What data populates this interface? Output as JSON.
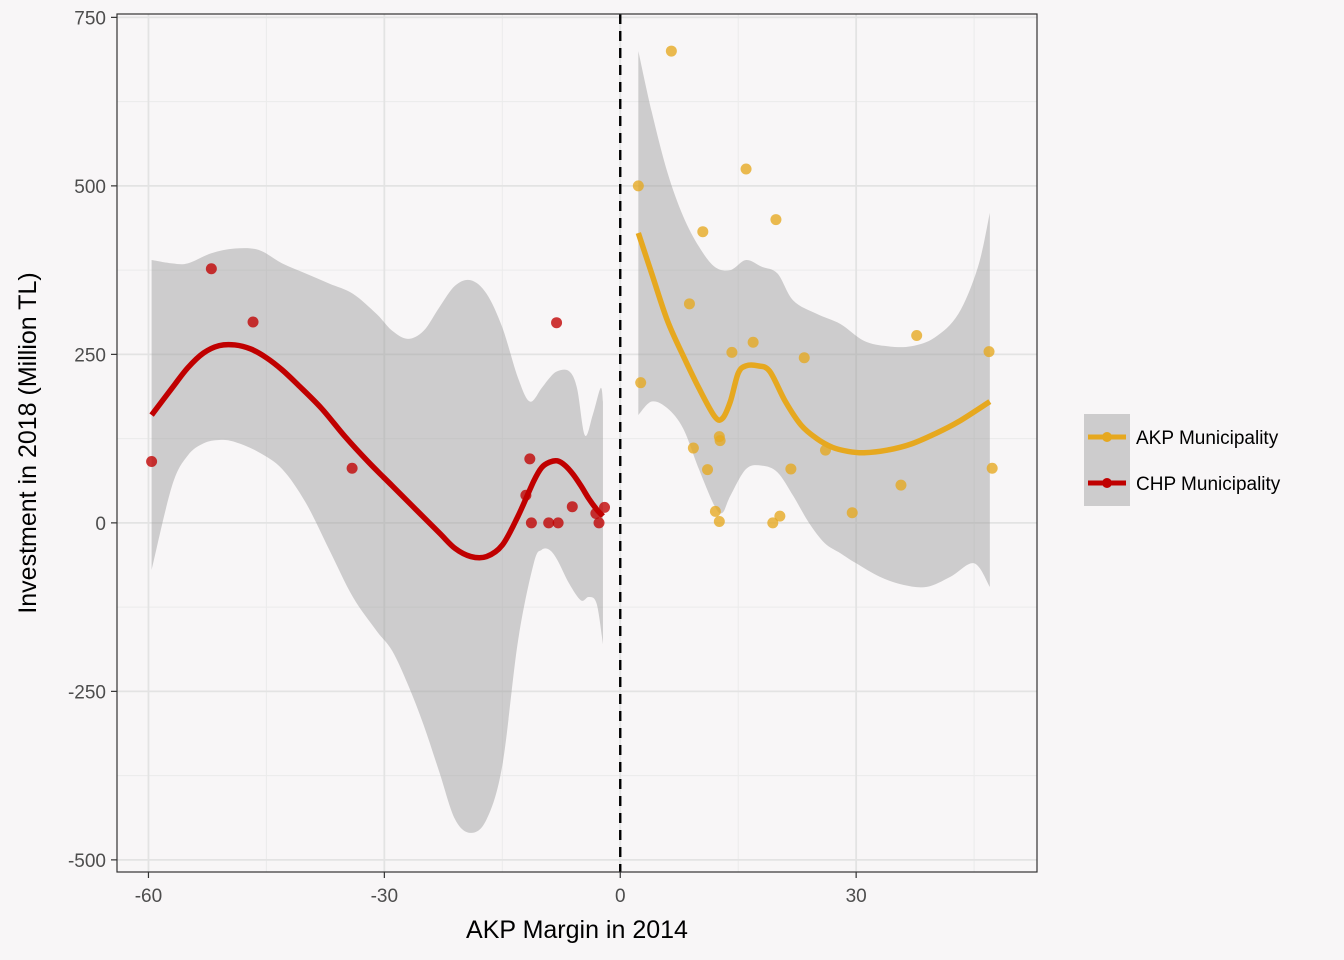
{
  "chart_data": {
    "type": "scatter",
    "xlabel": "AKP Margin in 2014",
    "ylabel": "Investment in 2018 (Million TL)",
    "xlim": [
      -64,
      53
    ],
    "ylim": [
      -518,
      755
    ],
    "x_ticks": [
      -60,
      -30,
      0,
      30
    ],
    "x_tick_labels": [
      "-60",
      "-30",
      "0",
      "30"
    ],
    "y_ticks": [
      -500,
      -250,
      0,
      250,
      500,
      750
    ],
    "y_tick_labels": [
      "-500",
      "-250",
      "0",
      "250",
      "500",
      "750"
    ],
    "grid": true,
    "cutoff_line": {
      "x": 0,
      "style": "dashed"
    },
    "legend_position": "right",
    "series": [
      {
        "name": "AKP Municipality",
        "color": "#e6a81f",
        "points": [
          [
            2.3,
            500
          ],
          [
            2.6,
            208
          ],
          [
            6.5,
            700
          ],
          [
            8.8,
            325
          ],
          [
            9.3,
            111
          ],
          [
            10.5,
            432
          ],
          [
            11.1,
            79
          ],
          [
            12.1,
            17
          ],
          [
            12.6,
            2
          ],
          [
            12.6,
            128
          ],
          [
            12.7,
            122
          ],
          [
            14.2,
            253
          ],
          [
            16.0,
            525
          ],
          [
            16.9,
            268
          ],
          [
            19.4,
            0
          ],
          [
            19.8,
            450
          ],
          [
            20.3,
            10
          ],
          [
            21.7,
            80
          ],
          [
            23.4,
            245
          ],
          [
            26.1,
            108
          ],
          [
            29.5,
            15
          ],
          [
            35.7,
            56
          ],
          [
            37.7,
            278
          ],
          [
            46.9,
            254
          ],
          [
            47.3,
            81
          ]
        ],
        "smooth": [
          [
            2.3,
            430
          ],
          [
            4,
            370
          ],
          [
            6,
            300
          ],
          [
            8,
            248
          ],
          [
            10,
            200
          ],
          [
            12,
            158
          ],
          [
            13,
            155
          ],
          [
            14,
            180
          ],
          [
            15,
            222
          ],
          [
            16,
            233
          ],
          [
            17.5,
            233
          ],
          [
            19,
            225
          ],
          [
            21,
            180
          ],
          [
            23,
            145
          ],
          [
            25,
            125
          ],
          [
            27,
            112
          ],
          [
            29,
            106
          ],
          [
            31,
            104
          ],
          [
            34,
            108
          ],
          [
            37,
            117
          ],
          [
            40,
            132
          ],
          [
            43,
            150
          ],
          [
            47,
            180
          ]
        ],
        "ci_upper": [
          [
            2.3,
            700
          ],
          [
            4,
            610
          ],
          [
            6,
            520
          ],
          [
            8,
            455
          ],
          [
            10,
            410
          ],
          [
            12,
            380
          ],
          [
            14,
            375
          ],
          [
            16,
            390
          ],
          [
            18,
            380
          ],
          [
            20,
            370
          ],
          [
            22,
            330
          ],
          [
            25,
            310
          ],
          [
            28,
            295
          ],
          [
            31,
            270
          ],
          [
            34,
            262
          ],
          [
            37,
            262
          ],
          [
            40,
            275
          ],
          [
            43,
            310
          ],
          [
            45.5,
            380
          ],
          [
            47,
            460
          ]
        ],
        "ci_lower": [
          [
            2.3,
            160
          ],
          [
            4,
            180
          ],
          [
            6,
            170
          ],
          [
            8,
            140
          ],
          [
            10,
            80
          ],
          [
            12,
            25
          ],
          [
            13,
            15
          ],
          [
            14,
            40
          ],
          [
            16,
            80
          ],
          [
            18,
            85
          ],
          [
            20,
            75
          ],
          [
            22,
            40
          ],
          [
            24,
            0
          ],
          [
            26,
            -30
          ],
          [
            28,
            -45
          ],
          [
            30,
            -60
          ],
          [
            33,
            -80
          ],
          [
            36,
            -92
          ],
          [
            39,
            -95
          ],
          [
            42,
            -80
          ],
          [
            45,
            -60
          ],
          [
            47,
            -95
          ]
        ]
      },
      {
        "name": "CHP Municipality",
        "color": "#c00000",
        "points": [
          [
            -59.6,
            91
          ],
          [
            -52.0,
            377
          ],
          [
            -46.7,
            298
          ],
          [
            -34.1,
            81
          ],
          [
            -12.0,
            41
          ],
          [
            -11.5,
            95
          ],
          [
            -11.3,
            0
          ],
          [
            -9.1,
            0
          ],
          [
            -8.1,
            297
          ],
          [
            -7.9,
            0
          ],
          [
            -6.1,
            24
          ],
          [
            -3.1,
            14
          ],
          [
            -2.7,
            0
          ],
          [
            -2.0,
            23
          ]
        ],
        "smooth": [
          [
            -59.6,
            160
          ],
          [
            -57,
            200
          ],
          [
            -55,
            230
          ],
          [
            -53,
            252
          ],
          [
            -51,
            263
          ],
          [
            -49,
            264
          ],
          [
            -47,
            258
          ],
          [
            -45,
            245
          ],
          [
            -43,
            227
          ],
          [
            -41,
            205
          ],
          [
            -38,
            170
          ],
          [
            -35,
            128
          ],
          [
            -32,
            90
          ],
          [
            -29,
            55
          ],
          [
            -26,
            20
          ],
          [
            -23,
            -15
          ],
          [
            -21,
            -38
          ],
          [
            -19,
            -50
          ],
          [
            -17,
            -50
          ],
          [
            -15,
            -33
          ],
          [
            -13,
            10
          ],
          [
            -11,
            62
          ],
          [
            -10,
            82
          ],
          [
            -9,
            90
          ],
          [
            -8,
            92
          ],
          [
            -7,
            85
          ],
          [
            -6,
            72
          ],
          [
            -5,
            55
          ],
          [
            -4,
            36
          ],
          [
            -3,
            20
          ],
          [
            -2.2,
            10
          ]
        ],
        "ci_upper": [
          [
            -59.6,
            390
          ],
          [
            -57,
            385
          ],
          [
            -55,
            385
          ],
          [
            -52,
            400
          ],
          [
            -49,
            407
          ],
          [
            -46,
            405
          ],
          [
            -43,
            385
          ],
          [
            -40,
            370
          ],
          [
            -37,
            355
          ],
          [
            -34,
            340
          ],
          [
            -31,
            310
          ],
          [
            -29,
            285
          ],
          [
            -27,
            273
          ],
          [
            -25,
            285
          ],
          [
            -23,
            320
          ],
          [
            -21,
            352
          ],
          [
            -19,
            360
          ],
          [
            -17,
            340
          ],
          [
            -15,
            290
          ],
          [
            -13,
            215
          ],
          [
            -11.5,
            180
          ],
          [
            -10,
            200
          ],
          [
            -9,
            215
          ],
          [
            -8,
            225
          ],
          [
            -6.5,
            225
          ],
          [
            -5.5,
            200
          ],
          [
            -4.5,
            130
          ],
          [
            -3.5,
            160
          ],
          [
            -2.5,
            200
          ],
          [
            -2.2,
            180
          ]
        ],
        "ci_lower": [
          [
            -59.6,
            -70
          ],
          [
            -57,
            55
          ],
          [
            -55,
            100
          ],
          [
            -53,
            118
          ],
          [
            -51,
            123
          ],
          [
            -49,
            120
          ],
          [
            -46,
            105
          ],
          [
            -43,
            80
          ],
          [
            -40,
            30
          ],
          [
            -37,
            -40
          ],
          [
            -34,
            -110
          ],
          [
            -31,
            -160
          ],
          [
            -29,
            -190
          ],
          [
            -27,
            -240
          ],
          [
            -25,
            -300
          ],
          [
            -23,
            -370
          ],
          [
            -21,
            -440
          ],
          [
            -19,
            -460
          ],
          [
            -17,
            -440
          ],
          [
            -15,
            -360
          ],
          [
            -13,
            -175
          ],
          [
            -11,
            -60
          ],
          [
            -10,
            -40
          ],
          [
            -9,
            -40
          ],
          [
            -8,
            -55
          ],
          [
            -6.5,
            -90
          ],
          [
            -5,
            -115
          ],
          [
            -4,
            -110
          ],
          [
            -3,
            -120
          ],
          [
            -2.2,
            -180
          ]
        ]
      }
    ]
  }
}
